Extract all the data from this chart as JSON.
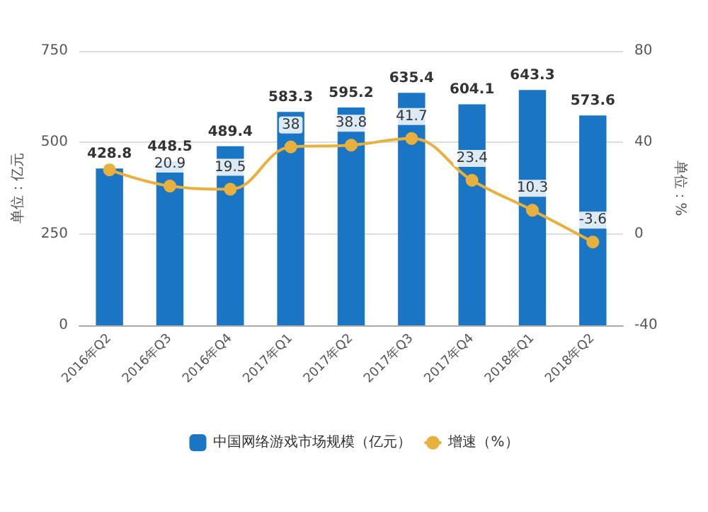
{
  "chart_data": {
    "type": "bar",
    "ylabel": "单位：亿元",
    "y2label": "单位：%",
    "categories": [
      "2016年Q2",
      "2016年Q3",
      "2016年Q4",
      "2017年Q1",
      "2017年Q2",
      "2017年Q3",
      "2017年Q4",
      "2018年Q1",
      "2018年Q2"
    ],
    "series": [
      {
        "name": "中国网络游戏市场规模（亿元）",
        "color": "#1a75c4",
        "values": [
          428.8,
          448.5,
          489.4,
          583.3,
          595.2,
          635.4,
          604.1,
          643.3,
          573.6
        ]
      },
      {
        "name": "增速（%）",
        "type": "line",
        "axis": "y2",
        "color": "#e8b03c",
        "values": [
          28,
          20.9,
          19.5,
          38,
          38.8,
          41.7,
          23.4,
          10.3,
          -3.6
        ],
        "value_labels": [
          null,
          "20.9",
          "19.5",
          "38",
          "38.8",
          "41.7",
          "23.4",
          "10.3",
          "-3.6"
        ]
      }
    ],
    "ylim": [
      0,
      750
    ],
    "yticks": [
      0,
      250,
      500,
      750
    ],
    "y2lim": [
      -40,
      80
    ],
    "y2ticks": [
      -40,
      0,
      40,
      80
    ],
    "data_labels": true,
    "grid": "y",
    "legend": "bottom",
    "marker": "circle",
    "line_style": "solid"
  }
}
